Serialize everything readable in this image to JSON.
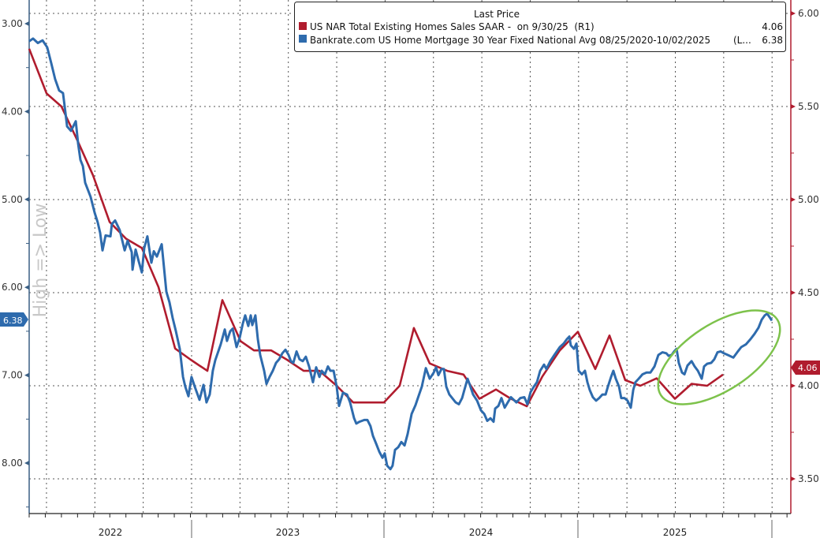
{
  "chart_data": {
    "type": "line",
    "title": "",
    "x_unit": "months from chart start",
    "xlim": [
      0,
      47
    ],
    "x_tick_labels": [
      "2022",
      "2023",
      "2024",
      "2025"
    ],
    "left_axis": {
      "label": "High => Low",
      "ylim": [
        3.0,
        8.4
      ],
      "inverted": true,
      "tick_labels": [
        "3.00",
        "4.00",
        "5.00",
        "6.00",
        "7.00",
        "8.00"
      ],
      "ticks": [
        3,
        4,
        5,
        6,
        7,
        8
      ]
    },
    "right_axis": {
      "ylim": [
        3.35,
        6.07
      ],
      "tick_labels": [
        "6.00",
        "5.50",
        "5.00",
        "4.50",
        "4.00",
        "3.50"
      ],
      "ticks": [
        6.0,
        5.5,
        5.0,
        4.5,
        4.0,
        3.5
      ]
    },
    "grid": true,
    "legend": {
      "placement": "top-right",
      "header": "Last Price",
      "entries": [
        {
          "label": "US NAR Total Existing Homes Sales SAAR -  on 9/30/25  (R1)",
          "value": "4.06"
        },
        {
          "label": "Bankrate.com US Home Mortgage 30 Year Fixed National Avg 08/25/2020-10/02/2025",
          "suffix": "(L...",
          "value": "6.38"
        }
      ]
    },
    "series": [
      {
        "name": "US NAR Total Existing Homes Sales SAAR",
        "axis": "right",
        "color": "#b01c2e",
        "last_label": "4.06",
        "points": [
          [
            0,
            5.81
          ],
          [
            1.08,
            5.57
          ],
          [
            2.0,
            5.5
          ],
          [
            3.03,
            5.31
          ],
          [
            3.96,
            5.13
          ],
          [
            4.99,
            4.88
          ],
          [
            6.01,
            4.79
          ],
          [
            6.99,
            4.74
          ],
          [
            8.02,
            4.53
          ],
          [
            9.05,
            4.2
          ],
          [
            10.02,
            4.14
          ],
          [
            11.05,
            4.08
          ],
          [
            11.98,
            4.46
          ],
          [
            13.11,
            4.24
          ],
          [
            13.94,
            4.19
          ],
          [
            15.01,
            4.19
          ],
          [
            15.99,
            4.14
          ],
          [
            17.02,
            4.08
          ],
          [
            18.0,
            4.08
          ],
          [
            19.07,
            4.0
          ],
          [
            20.1,
            3.91
          ],
          [
            21.03,
            3.91
          ],
          [
            22.0,
            3.91
          ],
          [
            22.98,
            4.0
          ],
          [
            23.86,
            4.31
          ],
          [
            24.84,
            4.12
          ],
          [
            25.92,
            4.08
          ],
          [
            26.94,
            4.06
          ],
          [
            27.92,
            3.93
          ],
          [
            28.95,
            3.98
          ],
          [
            29.88,
            3.93
          ],
          [
            30.86,
            3.89
          ],
          [
            31.83,
            4.05
          ],
          [
            32.91,
            4.19
          ],
          [
            34.03,
            4.29
          ],
          [
            35.11,
            4.09
          ],
          [
            35.99,
            4.27
          ],
          [
            36.97,
            4.03
          ],
          [
            37.9,
            4.0
          ],
          [
            38.92,
            4.04
          ],
          [
            40.05,
            3.93
          ],
          [
            41.08,
            4.01
          ],
          [
            42.05,
            4.0
          ],
          [
            43.03,
            4.06
          ]
        ]
      },
      {
        "name": "Bankrate.com US Home Mortgage 30 Year Fixed National Avg",
        "axis": "left",
        "color": "#2e6bad",
        "last_label": "6.38",
        "points": [
          [
            0,
            3.2
          ],
          [
            0.24,
            3.17
          ],
          [
            0.54,
            3.22
          ],
          [
            0.83,
            3.19
          ],
          [
            1.12,
            3.27
          ],
          [
            1.37,
            3.45
          ],
          [
            1.61,
            3.63
          ],
          [
            1.86,
            3.76
          ],
          [
            2.1,
            3.79
          ],
          [
            2.2,
            3.94
          ],
          [
            2.35,
            4.17
          ],
          [
            2.59,
            4.22
          ],
          [
            2.89,
            4.11
          ],
          [
            3.03,
            4.36
          ],
          [
            3.18,
            4.55
          ],
          [
            3.33,
            4.62
          ],
          [
            3.47,
            4.81
          ],
          [
            3.81,
            4.97
          ],
          [
            4.06,
            5.15
          ],
          [
            4.25,
            5.26
          ],
          [
            4.4,
            5.38
          ],
          [
            4.55,
            5.58
          ],
          [
            4.74,
            5.41
          ],
          [
            5.04,
            5.42
          ],
          [
            5.13,
            5.28
          ],
          [
            5.33,
            5.24
          ],
          [
            5.62,
            5.35
          ],
          [
            5.92,
            5.58
          ],
          [
            6.11,
            5.47
          ],
          [
            6.36,
            5.6
          ],
          [
            6.41,
            5.8
          ],
          [
            6.6,
            5.57
          ],
          [
            6.8,
            5.71
          ],
          [
            6.99,
            5.83
          ],
          [
            7.14,
            5.55
          ],
          [
            7.33,
            5.42
          ],
          [
            7.58,
            5.72
          ],
          [
            7.73,
            5.59
          ],
          [
            7.92,
            5.65
          ],
          [
            8.22,
            5.51
          ],
          [
            8.51,
            6.05
          ],
          [
            8.7,
            6.17
          ],
          [
            8.9,
            6.35
          ],
          [
            9.1,
            6.5
          ],
          [
            9.34,
            6.7
          ],
          [
            9.54,
            7.02
          ],
          [
            9.68,
            7.13
          ],
          [
            9.88,
            7.24
          ],
          [
            10.07,
            7.02
          ],
          [
            10.27,
            7.13
          ],
          [
            10.56,
            7.28
          ],
          [
            10.81,
            7.11
          ],
          [
            11.0,
            7.31
          ],
          [
            11.2,
            7.22
          ],
          [
            11.39,
            6.95
          ],
          [
            11.54,
            6.83
          ],
          [
            11.88,
            6.65
          ],
          [
            12.13,
            6.48
          ],
          [
            12.27,
            6.61
          ],
          [
            12.47,
            6.5
          ],
          [
            12.62,
            6.47
          ],
          [
            12.86,
            6.68
          ],
          [
            13.06,
            6.57
          ],
          [
            13.25,
            6.41
          ],
          [
            13.4,
            6.32
          ],
          [
            13.59,
            6.44
          ],
          [
            13.74,
            6.32
          ],
          [
            13.84,
            6.43
          ],
          [
            14.03,
            6.32
          ],
          [
            14.18,
            6.59
          ],
          [
            14.33,
            6.77
          ],
          [
            14.57,
            6.95
          ],
          [
            14.72,
            7.1
          ],
          [
            14.91,
            7.02
          ],
          [
            15.11,
            6.95
          ],
          [
            15.31,
            6.86
          ],
          [
            15.5,
            6.82
          ],
          [
            15.7,
            6.75
          ],
          [
            15.89,
            6.71
          ],
          [
            16.09,
            6.77
          ],
          [
            16.23,
            6.84
          ],
          [
            16.38,
            6.86
          ],
          [
            16.58,
            6.73
          ],
          [
            16.77,
            6.82
          ],
          [
            16.97,
            6.84
          ],
          [
            17.16,
            6.79
          ],
          [
            17.36,
            6.9
          ],
          [
            17.6,
            7.08
          ],
          [
            17.8,
            6.91
          ],
          [
            18.0,
            7.02
          ],
          [
            18.14,
            6.95
          ],
          [
            18.34,
            6.99
          ],
          [
            18.53,
            6.9
          ],
          [
            18.68,
            6.95
          ],
          [
            18.88,
            6.95
          ],
          [
            19.07,
            7.13
          ],
          [
            19.22,
            7.35
          ],
          [
            19.46,
            7.2
          ],
          [
            19.71,
            7.22
          ],
          [
            19.9,
            7.31
          ],
          [
            20.15,
            7.49
          ],
          [
            20.29,
            7.55
          ],
          [
            20.49,
            7.53
          ],
          [
            20.78,
            7.51
          ],
          [
            20.98,
            7.51
          ],
          [
            21.17,
            7.58
          ],
          [
            21.32,
            7.69
          ],
          [
            21.52,
            7.78
          ],
          [
            21.71,
            7.87
          ],
          [
            21.91,
            7.94
          ],
          [
            22.05,
            7.89
          ],
          [
            22.2,
            8.03
          ],
          [
            22.4,
            8.07
          ],
          [
            22.54,
            8.03
          ],
          [
            22.69,
            7.85
          ],
          [
            22.89,
            7.82
          ],
          [
            23.08,
            7.76
          ],
          [
            23.28,
            7.8
          ],
          [
            23.47,
            7.67
          ],
          [
            23.72,
            7.44
          ],
          [
            23.96,
            7.34
          ],
          [
            24.11,
            7.26
          ],
          [
            24.35,
            7.13
          ],
          [
            24.6,
            6.92
          ],
          [
            24.84,
            7.04
          ],
          [
            25.09,
            6.97
          ],
          [
            25.23,
            6.91
          ],
          [
            25.38,
            7.0
          ],
          [
            25.57,
            6.93
          ],
          [
            25.72,
            6.93
          ],
          [
            25.87,
            7.13
          ],
          [
            26.06,
            7.22
          ],
          [
            26.45,
            7.31
          ],
          [
            26.65,
            7.33
          ],
          [
            26.85,
            7.26
          ],
          [
            26.99,
            7.17
          ],
          [
            27.19,
            7.04
          ],
          [
            27.33,
            7.11
          ],
          [
            27.53,
            7.22
          ],
          [
            27.78,
            7.29
          ],
          [
            28.02,
            7.4
          ],
          [
            28.22,
            7.44
          ],
          [
            28.41,
            7.52
          ],
          [
            28.61,
            7.49
          ],
          [
            28.8,
            7.53
          ],
          [
            28.9,
            7.38
          ],
          [
            29.1,
            7.35
          ],
          [
            29.29,
            7.26
          ],
          [
            29.49,
            7.37
          ],
          [
            29.68,
            7.31
          ],
          [
            29.88,
            7.25
          ],
          [
            30.22,
            7.31
          ],
          [
            30.46,
            7.26
          ],
          [
            30.71,
            7.25
          ],
          [
            30.9,
            7.33
          ],
          [
            31.1,
            7.19
          ],
          [
            31.3,
            7.13
          ],
          [
            31.49,
            7.08
          ],
          [
            31.69,
            6.95
          ],
          [
            31.93,
            6.88
          ],
          [
            32.08,
            6.93
          ],
          [
            32.32,
            6.84
          ],
          [
            32.57,
            6.77
          ],
          [
            32.91,
            6.68
          ],
          [
            33.15,
            6.64
          ],
          [
            33.35,
            6.59
          ],
          [
            33.5,
            6.56
          ],
          [
            33.59,
            6.66
          ],
          [
            33.79,
            6.7
          ],
          [
            33.94,
            6.64
          ],
          [
            34.08,
            6.95
          ],
          [
            34.28,
            6.99
          ],
          [
            34.47,
            6.95
          ],
          [
            34.62,
            7.08
          ],
          [
            34.77,
            7.17
          ],
          [
            34.96,
            7.25
          ],
          [
            35.16,
            7.29
          ],
          [
            35.35,
            7.26
          ],
          [
            35.55,
            7.22
          ],
          [
            35.75,
            7.22
          ],
          [
            35.89,
            7.13
          ],
          [
            36.09,
            7.02
          ],
          [
            36.23,
            6.95
          ],
          [
            36.38,
            7.04
          ],
          [
            36.58,
            7.13
          ],
          [
            36.72,
            7.26
          ],
          [
            36.92,
            7.26
          ],
          [
            37.11,
            7.29
          ],
          [
            37.31,
            7.37
          ],
          [
            37.46,
            7.17
          ],
          [
            37.6,
            7.08
          ],
          [
            37.8,
            7.04
          ],
          [
            38.04,
            6.99
          ],
          [
            38.29,
            6.97
          ],
          [
            38.53,
            6.97
          ],
          [
            38.78,
            6.9
          ],
          [
            39.02,
            6.77
          ],
          [
            39.27,
            6.74
          ],
          [
            39.51,
            6.75
          ],
          [
            39.66,
            6.78
          ],
          [
            39.85,
            6.77
          ],
          [
            40.0,
            6.73
          ],
          [
            40.15,
            6.7
          ],
          [
            40.29,
            6.86
          ],
          [
            40.49,
            6.97
          ],
          [
            40.64,
            6.99
          ],
          [
            40.83,
            6.89
          ],
          [
            41.08,
            6.84
          ],
          [
            41.27,
            6.9
          ],
          [
            41.47,
            6.95
          ],
          [
            41.71,
            7.04
          ],
          [
            41.86,
            6.9
          ],
          [
            42.05,
            6.87
          ],
          [
            42.3,
            6.86
          ],
          [
            42.49,
            6.82
          ],
          [
            42.69,
            6.74
          ],
          [
            42.89,
            6.73
          ],
          [
            43.08,
            6.75
          ],
          [
            43.33,
            6.77
          ],
          [
            43.67,
            6.8
          ],
          [
            43.91,
            6.74
          ],
          [
            44.16,
            6.68
          ],
          [
            44.45,
            6.65
          ],
          [
            44.74,
            6.59
          ],
          [
            44.99,
            6.53
          ],
          [
            45.23,
            6.46
          ],
          [
            45.43,
            6.37
          ],
          [
            45.62,
            6.32
          ],
          [
            45.77,
            6.3
          ],
          [
            45.92,
            6.34
          ],
          [
            46.06,
            6.38
          ]
        ]
      }
    ],
    "annotations": [
      {
        "type": "ellipse",
        "color": "#7dc24b",
        "highlights": "2025 divergence of rates and sales"
      }
    ]
  }
}
